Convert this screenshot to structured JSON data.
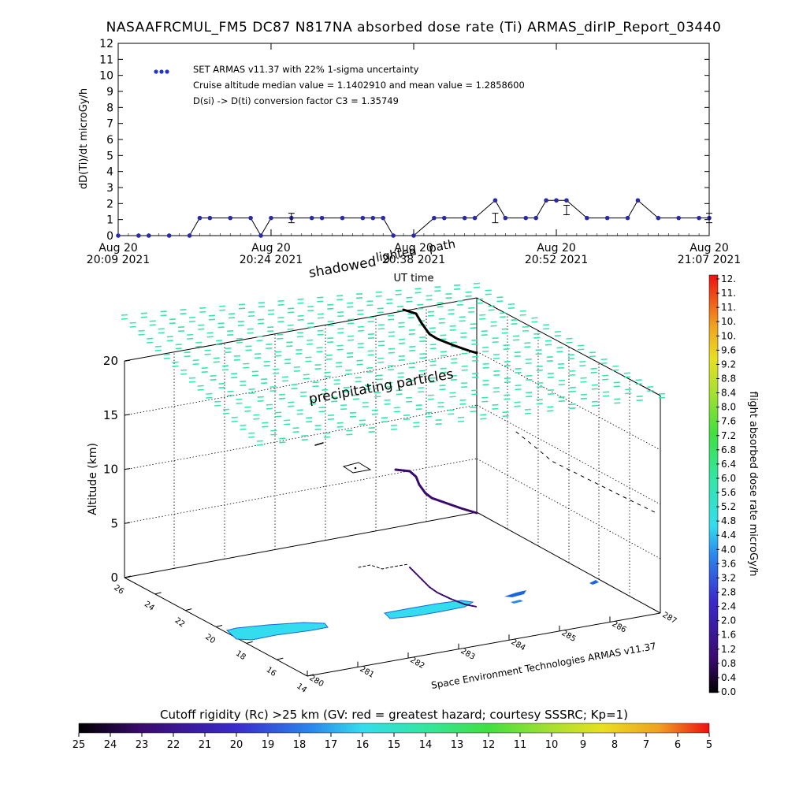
{
  "title": "NASAAFRCMUL_FM5 DC87 N817NA absorbed dose rate (Ti) ARMAS_dirIP_Report_03440",
  "top_chart": {
    "ylabel": "dD(Ti)/dt microGy/h",
    "xlabel": "UT time",
    "legend": [
      "SET ARMAS v11.37 with 22% 1-sigma uncertainty",
      "Cruise altitude median value = 1.1402910 and mean value = 1.2858600",
      "D(si) -> D(ti) conversion factor C3 = 1.35749"
    ],
    "x_ticks": [
      {
        "date": "Aug 20",
        "time": "20:09 2021"
      },
      {
        "date": "Aug 20",
        "time": "20:24 2021"
      },
      {
        "date": "Aug 20",
        "time": "20:38 2021"
      },
      {
        "date": "Aug 20",
        "time": "20:52 2021"
      },
      {
        "date": "Aug 20",
        "time": "21:07 2021"
      }
    ],
    "y_ticks": [
      "0",
      "1",
      "2",
      "3",
      "4",
      "5",
      "6",
      "7",
      "8",
      "9",
      "10",
      "11",
      "12"
    ]
  },
  "chart_data": {
    "type": "line",
    "title": "NASAAFRCMUL_FM5 DC87 N817NA absorbed dose rate (Ti) ARMAS_dirIP_Report_03440",
    "xlabel": "UT time",
    "ylabel": "dD(Ti)/dt microGy/h",
    "xlim": [
      "20:09",
      "21:07"
    ],
    "ylim": [
      0,
      12
    ],
    "x": [
      "20:23",
      "20:25",
      "20:27",
      "20:29",
      "20:31",
      "20:33",
      "20:35",
      "20:37",
      "20:39",
      "20:41",
      "20:43",
      "20:45",
      "20:47",
      "20:49",
      "20:51",
      "20:53",
      "20:55",
      "20:57",
      "20:59",
      "21:01",
      "21:03",
      "21:05",
      "20:11",
      "20:13",
      "20:15",
      "20:17",
      "20:19",
      "20:21"
    ],
    "series": [
      {
        "name": "SET ARMAS v11.37 with 22% 1-sigma uncertainty",
        "color": "#2233cc",
        "x": [
          "20:09",
          "20:11",
          "20:12",
          "20:14",
          "20:16",
          "20:17",
          "20:18",
          "20:20",
          "20:22",
          "20:23",
          "20:24",
          "20:26",
          "20:28",
          "20:29",
          "20:31",
          "20:33",
          "20:34",
          "20:35",
          "20:36",
          "20:38",
          "20:40",
          "20:41",
          "20:43",
          "20:44",
          "20:46",
          "20:47",
          "20:49",
          "20:50",
          "20:51",
          "20:52",
          "20:53",
          "20:55",
          "20:57",
          "20:59",
          "21:00",
          "21:02",
          "21:04",
          "21:06",
          "21:07"
        ],
        "values": [
          0,
          0,
          0,
          0,
          0,
          1.1,
          1.1,
          1.1,
          1.1,
          0,
          1.1,
          1.1,
          1.1,
          1.1,
          1.1,
          1.1,
          1.1,
          1.1,
          0,
          0,
          1.1,
          1.1,
          1.1,
          1.1,
          2.2,
          1.1,
          1.1,
          1.1,
          2.2,
          2.2,
          2.2,
          1.1,
          1.1,
          1.1,
          2.2,
          1.1,
          1.1,
          1.1,
          1.1
        ]
      }
    ],
    "error_bars": [
      {
        "x": "20:26",
        "value": 1.1
      },
      {
        "x": "20:46",
        "value": 1.1
      },
      {
        "x": "20:53",
        "value": 1.6
      },
      {
        "x": "21:07",
        "value": 1.1
      }
    ]
  },
  "bottom_chart": {
    "ylabel": "Altitude (km)",
    "z_ticks": [
      "0",
      "5",
      "10",
      "15",
      "20"
    ],
    "lat_ticks": [
      "26",
      "24",
      "22",
      "20",
      "18",
      "16",
      "14"
    ],
    "lon_ticks": [
      "280",
      "281",
      "282",
      "283",
      "284",
      "285",
      "286",
      "287"
    ],
    "annotations": {
      "shadowed": "shadowed",
      "path": "path",
      "lighted": "lighted",
      "precipitating": "precipitating particles"
    },
    "credit": "Space Environment Technologies ARMAS v11.37"
  },
  "colorbar_right": {
    "label": "flight absorbed dose rate microGy/h",
    "ticks": [
      "12.",
      "11.",
      "11.",
      "10.",
      "10.",
      "9.6",
      "9.2",
      "8.8",
      "8.4",
      "8.0",
      "7.6",
      "7.2",
      "6.8",
      "6.4",
      "6.0",
      "5.6",
      "5.2",
      "4.8",
      "4.4",
      "4.0",
      "3.6",
      "3.2",
      "2.8",
      "2.4",
      "2.0",
      "1.6",
      "1.2",
      "0.8",
      "0.4",
      "0.0"
    ]
  },
  "colorbar_bottom": {
    "label": "Cutoff rigidity (Rc) >25 km (GV: red = greatest hazard; courtesy SSSRC; Kp=1)",
    "ticks": [
      "25",
      "24",
      "23",
      "22",
      "21",
      "20",
      "19",
      "18",
      "17",
      "16",
      "15",
      "14",
      "13",
      "12",
      "11",
      "10",
      "9",
      "8",
      "7",
      "6",
      "5"
    ]
  },
  "colors": {
    "marker": "#2a2aa8",
    "flight_path": "#3b0a6e",
    "precip": "#33e6b0",
    "cutoff_low": "#33ddee",
    "cutoff_mid": "#1a66dd"
  }
}
